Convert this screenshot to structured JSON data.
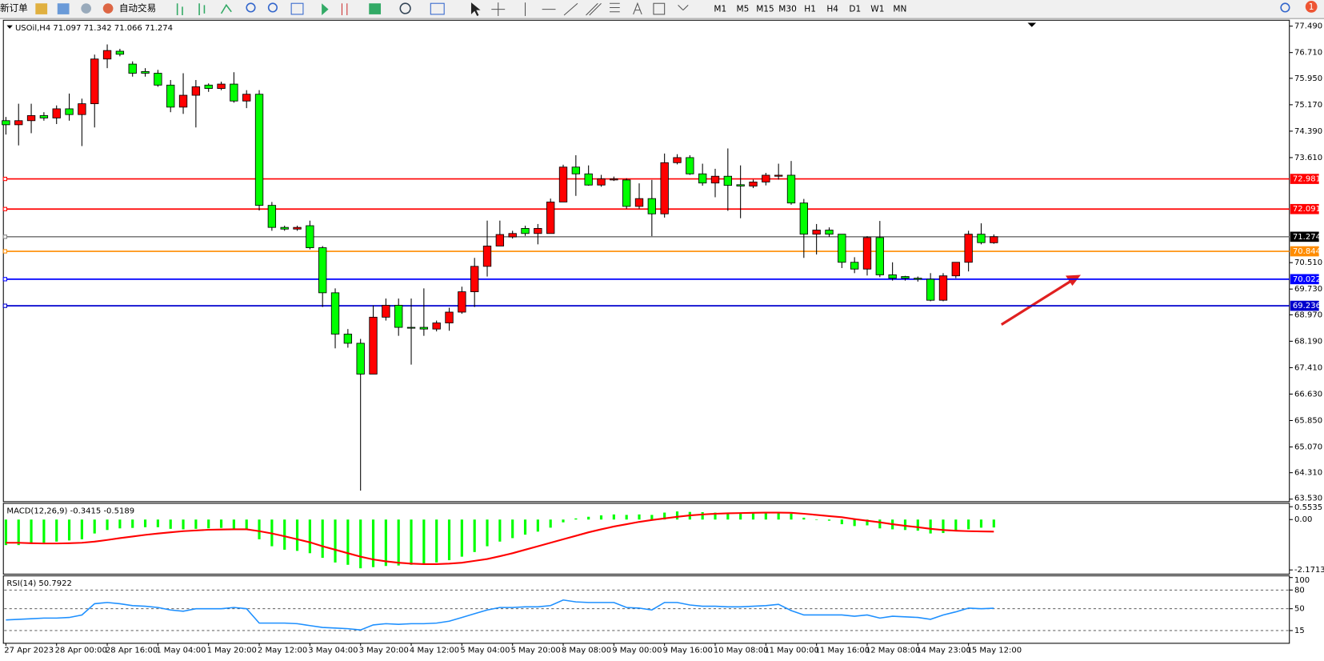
{
  "toolbar": {
    "items": [
      "新订单",
      "自动交易"
    ],
    "timeframes": [
      "M1",
      "M5",
      "M15",
      "M30",
      "H1",
      "H4",
      "D1",
      "W1",
      "MN"
    ],
    "badge": "1"
  },
  "chart_data": [
    {
      "type": "candlestick",
      "label": "USOil,H4  71.097 71.342 71.066 71.274",
      "categories": [
        "27 Apr 2023",
        null,
        null,
        null,
        "28 Apr 00:00",
        null,
        null,
        null,
        "28 Apr 16:00",
        null,
        null,
        null,
        "1 May 04:00",
        null,
        null,
        null,
        "1 May 20:00",
        null,
        null,
        null,
        "2 May 12:00",
        null,
        null,
        null,
        "3 May 04:00",
        null,
        null,
        null,
        "3 May 20:00",
        null,
        null,
        null,
        "4 May 12:00",
        null,
        null,
        null,
        "5 May 04:00",
        null,
        null,
        null,
        "5 May 20:00",
        null,
        null,
        null,
        "8 May 08:00",
        null,
        null,
        null,
        "9 May 00:00",
        null,
        null,
        null,
        "9 May 16:00",
        null,
        null,
        null,
        "10 May 08:00",
        null,
        null,
        null,
        "11 May 00:00",
        null,
        null,
        null,
        "11 May 16:00",
        null,
        null,
        null,
        "12 May 08:00",
        null,
        null,
        null,
        "14 May 23:00",
        null,
        null,
        null,
        "15 May 12:00",
        null,
        null
      ],
      "open": [
        74.7,
        74.58,
        74.7,
        74.85,
        74.78,
        75.05,
        74.88,
        75.2,
        76.52,
        76.75,
        76.37,
        76.15,
        76.1,
        75.75,
        75.1,
        75.45,
        75.75,
        75.65,
        75.78,
        75.28,
        75.48,
        72.2,
        71.55,
        71.5,
        71.6,
        70.95,
        69.62,
        68.4,
        68.13,
        67.22,
        68.9,
        69.25,
        68.6,
        68.6,
        68.55,
        68.73,
        69.05,
        69.65,
        70.4,
        71.0,
        71.27,
        71.52,
        71.37,
        71.37,
        72.3,
        73.33,
        73.13,
        72.8,
        72.95,
        72.95,
        72.17,
        72.4,
        71.95,
        73.46,
        73.61,
        73.13,
        72.86,
        73.06,
        72.81,
        72.77,
        72.89,
        73.06,
        73.09,
        72.27,
        71.35,
        71.47,
        71.35,
        70.52,
        70.32,
        71.25,
        70.15,
        70.1,
        70.05,
        70.02,
        69.4,
        70.12,
        70.52,
        71.35,
        71.097
      ],
      "high": [
        74.81,
        75.2,
        75.2,
        74.95,
        75.15,
        75.5,
        75.35,
        76.65,
        76.95,
        76.82,
        76.45,
        76.25,
        76.2,
        75.9,
        76.1,
        75.9,
        75.8,
        75.85,
        76.13,
        75.6,
        75.6,
        72.3,
        71.6,
        71.6,
        71.75,
        71.0,
        69.75,
        68.55,
        68.26,
        69.25,
        69.45,
        69.45,
        69.45,
        69.75,
        68.8,
        69.18,
        69.8,
        70.65,
        71.75,
        71.75,
        71.45,
        71.6,
        71.65,
        72.4,
        73.4,
        73.68,
        73.38,
        73.1,
        73.05,
        73.0,
        72.85,
        72.95,
        73.73,
        73.71,
        73.68,
        73.43,
        73.28,
        73.88,
        73.38,
        72.96,
        73.16,
        73.43,
        73.51,
        72.39,
        71.65,
        71.55,
        71.35,
        70.67,
        71.29,
        71.74,
        70.52,
        70.12,
        70.1,
        70.2,
        70.2,
        70.52,
        71.45,
        71.67,
        71.342
      ],
      "low": [
        74.29,
        73.97,
        74.33,
        74.7,
        74.6,
        74.7,
        73.95,
        74.5,
        76.25,
        76.6,
        76.0,
        76.0,
        75.7,
        74.95,
        74.9,
        74.5,
        75.55,
        75.6,
        75.23,
        75.07,
        72.05,
        71.45,
        71.45,
        71.45,
        70.9,
        69.2,
        67.98,
        68.0,
        63.78,
        67.22,
        68.8,
        68.35,
        67.5,
        68.35,
        68.48,
        68.5,
        69.0,
        69.2,
        70.1,
        71.0,
        71.22,
        71.3,
        71.05,
        71.37,
        72.3,
        72.48,
        72.78,
        72.75,
        72.92,
        72.1,
        72.1,
        71.29,
        71.84,
        73.41,
        73.1,
        72.78,
        72.44,
        72.04,
        71.82,
        72.71,
        72.79,
        72.96,
        72.22,
        70.65,
        70.75,
        71.27,
        70.35,
        70.2,
        70.13,
        70.08,
        69.98,
        69.98,
        69.95,
        69.37,
        69.37,
        70.05,
        70.25,
        71.05,
        71.066
      ],
      "close": [
        74.58,
        74.7,
        74.85,
        74.78,
        75.05,
        74.88,
        75.2,
        76.52,
        76.77,
        76.66,
        76.1,
        76.1,
        75.75,
        75.1,
        75.45,
        75.7,
        75.65,
        75.78,
        75.28,
        75.48,
        72.2,
        71.55,
        71.5,
        71.55,
        70.95,
        69.62,
        68.4,
        68.13,
        67.22,
        68.9,
        69.25,
        68.6,
        68.58,
        68.55,
        68.73,
        69.05,
        69.65,
        70.4,
        71.0,
        71.34,
        71.37,
        71.37,
        71.52,
        72.3,
        73.33,
        73.13,
        72.8,
        72.98,
        72.98,
        72.17,
        72.4,
        71.95,
        73.46,
        73.61,
        73.13,
        72.86,
        73.06,
        72.79,
        72.77,
        72.89,
        73.09,
        73.09,
        72.27,
        71.35,
        71.47,
        71.35,
        70.52,
        70.32,
        71.25,
        70.15,
        70.05,
        70.05,
        70.02,
        69.4,
        70.12,
        70.52,
        71.35,
        71.1,
        71.274
      ],
      "up_color": "#ff0000",
      "down_color": "#00ff00",
      "ylim": [
        63.53,
        77.49
      ],
      "yticks": [
        {
          "value": 77.49,
          "label": "77.490"
        },
        {
          "value": 76.71,
          "label": "76.710"
        },
        {
          "value": 75.95,
          "label": "75.950"
        },
        {
          "value": 75.17,
          "label": "75.170"
        },
        {
          "value": 74.39,
          "label": "74.390"
        },
        {
          "value": 73.61,
          "label": "73.610"
        },
        {
          "value": 70.51,
          "label": "70.510"
        },
        {
          "value": 69.73,
          "label": "69.730"
        },
        {
          "value": 68.97,
          "label": "68.970"
        },
        {
          "value": 68.19,
          "label": "68.190"
        },
        {
          "value": 67.41,
          "label": "67.410"
        },
        {
          "value": 66.63,
          "label": "66.630"
        },
        {
          "value": 65.85,
          "label": "65.850"
        },
        {
          "value": 65.07,
          "label": "65.070"
        },
        {
          "value": 64.31,
          "label": "64.310"
        },
        {
          "value": 63.53,
          "label": "63.530"
        }
      ],
      "hlines": [
        {
          "value": 72.981,
          "color": "#ff0000",
          "label_color": "#ff0000"
        },
        {
          "value": 72.091,
          "color": "#ff0000",
          "label_color": "#ff0000"
        },
        {
          "value": 71.274,
          "color": "#808080",
          "label_color": "#000000"
        },
        {
          "value": 70.844,
          "color": "#ff8c00",
          "label_color": "#ff8c00"
        },
        {
          "value": 70.022,
          "color": "#0000ff",
          "label_color": "#0000ff"
        },
        {
          "value": 69.236,
          "color": "#0000cd",
          "label_color": "#0000cd"
        }
      ],
      "grid": false
    },
    {
      "type": "macd",
      "label": "MACD(12,26,9) -0.3415 -0.5189",
      "histogram": {
        "color": "#00ff00",
        "values": [
          -1.1,
          -1.1,
          -1.05,
          -1.0,
          -0.95,
          -0.9,
          -0.85,
          -0.6,
          -0.45,
          -0.38,
          -0.36,
          -0.33,
          -0.33,
          -0.4,
          -0.42,
          -0.4,
          -0.38,
          -0.36,
          -0.4,
          -0.45,
          -0.85,
          -1.15,
          -1.3,
          -1.35,
          -1.45,
          -1.65,
          -1.85,
          -1.95,
          -2.1,
          -2.05,
          -2.0,
          -1.98,
          -1.95,
          -1.9,
          -1.85,
          -1.75,
          -1.6,
          -1.4,
          -1.15,
          -0.95,
          -0.8,
          -0.65,
          -0.52,
          -0.35,
          -0.12,
          0.05,
          0.12,
          0.18,
          0.22,
          0.2,
          0.22,
          0.2,
          0.3,
          0.35,
          0.33,
          0.32,
          0.3,
          0.3,
          0.28,
          0.3,
          0.32,
          0.32,
          0.25,
          0.08,
          -0.02,
          -0.05,
          -0.2,
          -0.28,
          -0.25,
          -0.38,
          -0.42,
          -0.45,
          -0.48,
          -0.6,
          -0.58,
          -0.5,
          -0.42,
          -0.35,
          -0.3415
        ]
      },
      "signal": {
        "color": "#ff0000",
        "values": [
          -1.0,
          -1.0,
          -1.02,
          -1.03,
          -1.03,
          -1.02,
          -1.0,
          -0.95,
          -0.88,
          -0.8,
          -0.73,
          -0.66,
          -0.6,
          -0.55,
          -0.5,
          -0.47,
          -0.44,
          -0.43,
          -0.42,
          -0.42,
          -0.5,
          -0.6,
          -0.72,
          -0.85,
          -0.98,
          -1.15,
          -1.3,
          -1.45,
          -1.6,
          -1.72,
          -1.8,
          -1.86,
          -1.9,
          -1.92,
          -1.92,
          -1.9,
          -1.86,
          -1.78,
          -1.7,
          -1.58,
          -1.45,
          -1.3,
          -1.15,
          -1.0,
          -0.85,
          -0.7,
          -0.55,
          -0.42,
          -0.3,
          -0.2,
          -0.1,
          -0.02,
          0.05,
          0.12,
          0.18,
          0.22,
          0.25,
          0.27,
          0.28,
          0.29,
          0.3,
          0.3,
          0.29,
          0.25,
          0.2,
          0.15,
          0.1,
          0.02,
          -0.05,
          -0.12,
          -0.2,
          -0.27,
          -0.33,
          -0.4,
          -0.45,
          -0.48,
          -0.5,
          -0.51,
          -0.5189
        ]
      },
      "ylim": [
        -2.1713,
        0.5535
      ],
      "yticks": [
        0.5535,
        {
          "value": 0,
          "label": "0.00"
        },
        -2.1713
      ]
    },
    {
      "type": "line",
      "label": "RSI(14) 50.7922",
      "color": "#1e90ff",
      "values": [
        32,
        33,
        34,
        35,
        35,
        36,
        40,
        58,
        60,
        58,
        55,
        54,
        52,
        48,
        46,
        50,
        50,
        50,
        52,
        50,
        27,
        27,
        27,
        26,
        23,
        20,
        19,
        18,
        16,
        24,
        26,
        25,
        26,
        26,
        27,
        30,
        36,
        42,
        48,
        52,
        52,
        53,
        53,
        55,
        64,
        61,
        60,
        60,
        60,
        52,
        51,
        48,
        60,
        60,
        56,
        54,
        54,
        53,
        53,
        54,
        55,
        57,
        47,
        40,
        40,
        40,
        40,
        38,
        40,
        35,
        38,
        37,
        36,
        33,
        40,
        45,
        51,
        50,
        50.7922
      ],
      "ylim": [
        0,
        100
      ],
      "yticks": [
        100,
        80,
        50,
        15
      ],
      "levels": [
        80,
        50,
        15
      ]
    }
  ]
}
